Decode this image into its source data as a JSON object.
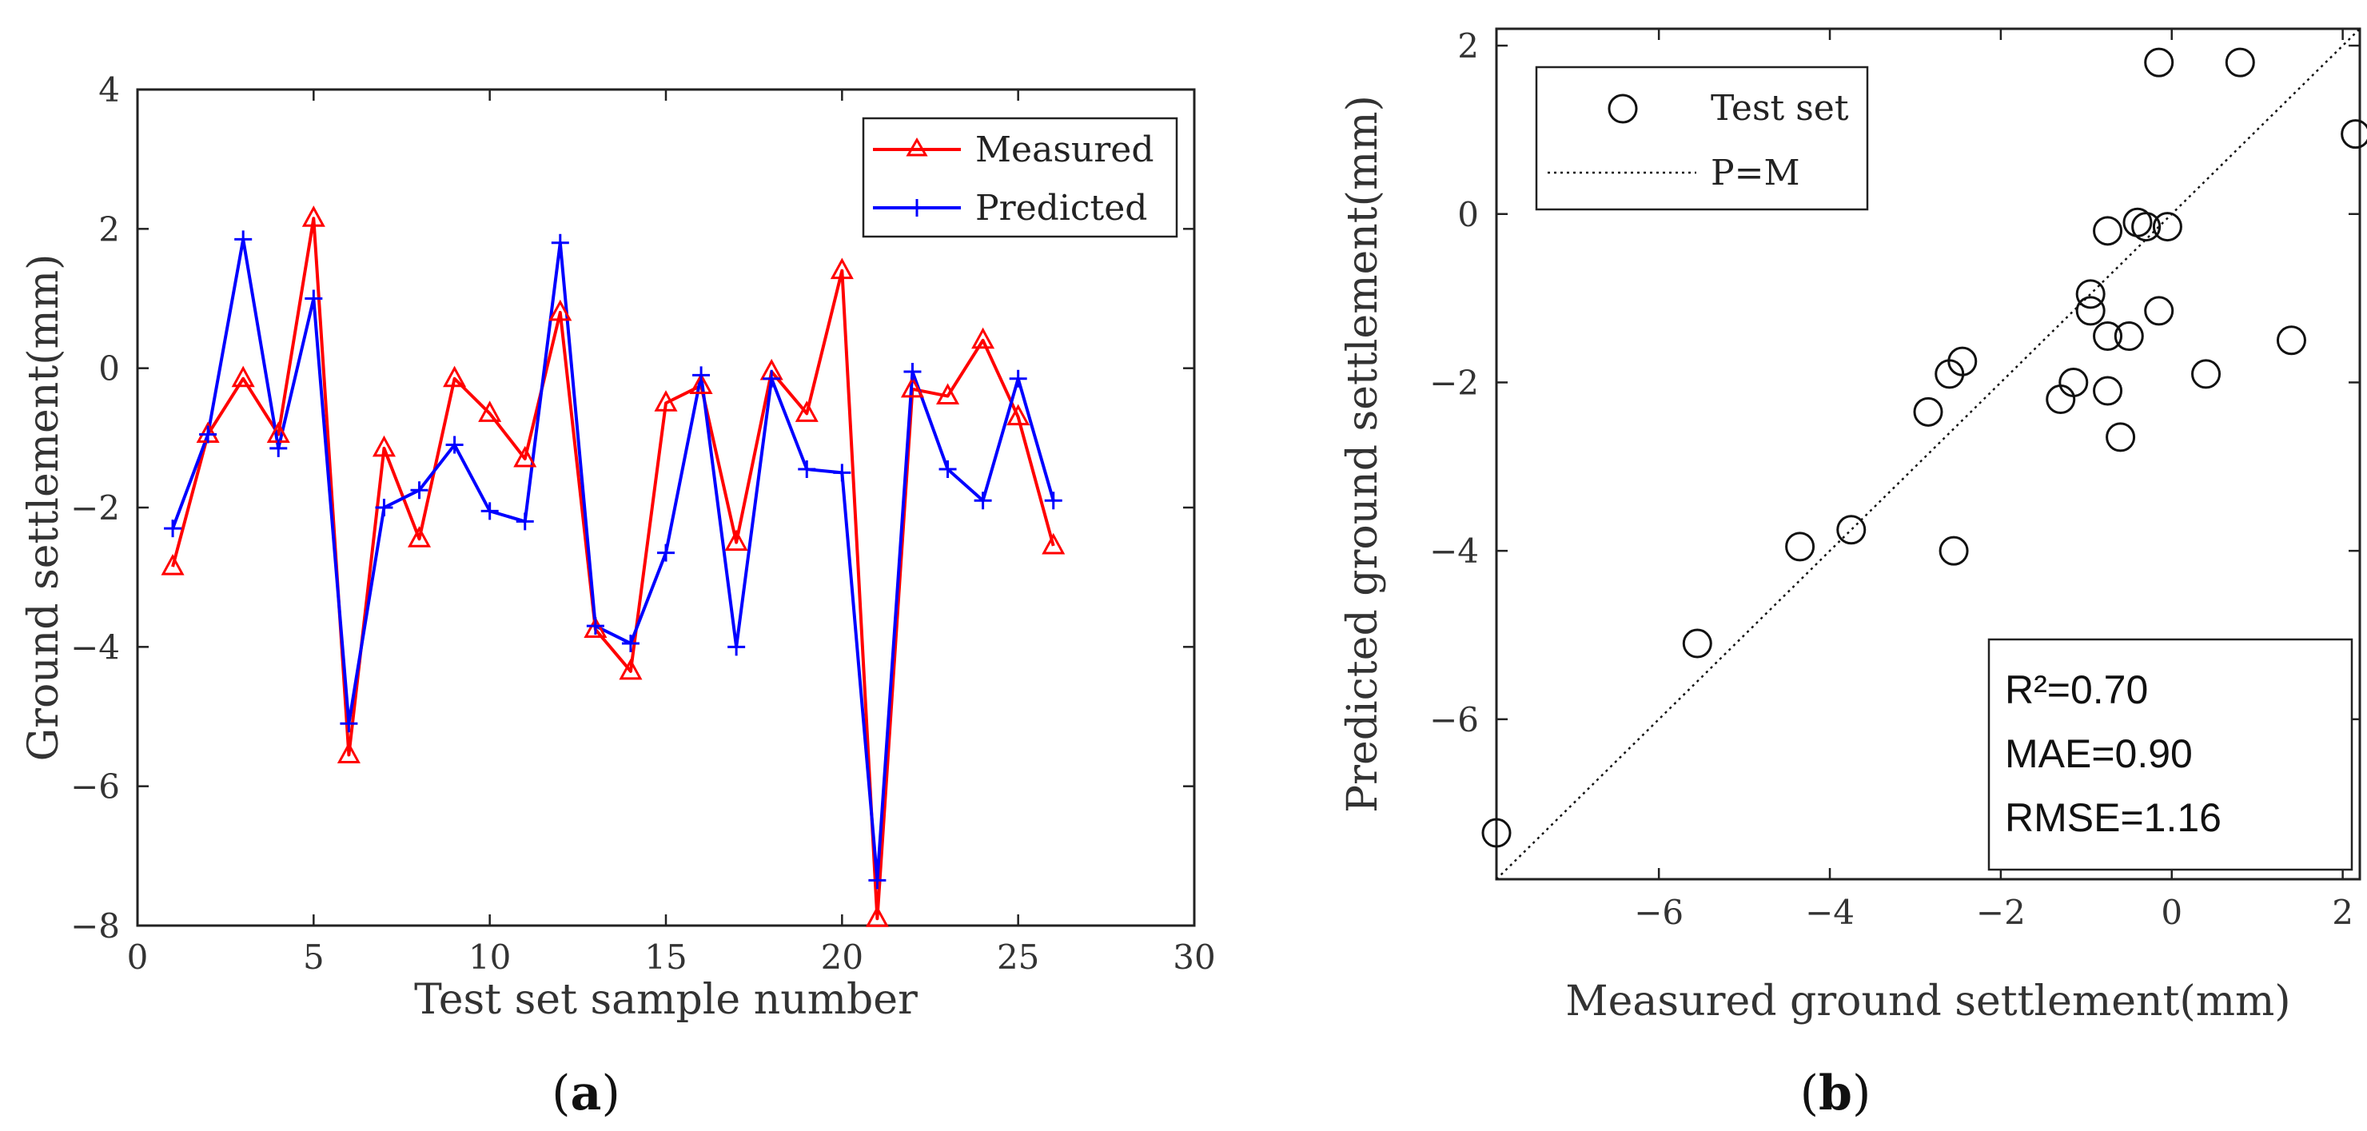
{
  "chart_data": [
    {
      "type": "line",
      "panel_label": "a",
      "xlabel": "Test set sample number",
      "ylabel": "Ground settlement(mm)",
      "xlim": [
        0,
        30
      ],
      "ylim": [
        -8,
        4
      ],
      "xticks": [
        0,
        5,
        10,
        15,
        20,
        25,
        30
      ],
      "yticks": [
        -8,
        -6,
        -4,
        -2,
        0,
        2,
        4
      ],
      "x": [
        1,
        2,
        3,
        4,
        5,
        6,
        7,
        8,
        9,
        10,
        11,
        12,
        13,
        14,
        15,
        16,
        17,
        18,
        19,
        20,
        21,
        22,
        23,
        24,
        25,
        26
      ],
      "series": [
        {
          "name": "Measured",
          "color": "#ff0000",
          "marker": "triangle",
          "values": [
            -2.85,
            -0.95,
            -0.15,
            -0.95,
            2.15,
            -5.55,
            -1.15,
            -2.45,
            -0.15,
            -0.65,
            -1.3,
            0.8,
            -3.75,
            -4.35,
            -0.5,
            -0.25,
            -2.5,
            -0.05,
            -0.65,
            1.4,
            -7.9,
            -0.3,
            -0.4,
            0.4,
            -0.7,
            -2.55
          ]
        },
        {
          "name": "Predicted",
          "color": "#0000ff",
          "marker": "plus",
          "values": [
            -2.3,
            -0.95,
            1.85,
            -1.15,
            1.0,
            -5.1,
            -2.0,
            -1.75,
            -1.1,
            -2.05,
            -2.2,
            1.8,
            -3.7,
            -3.95,
            -2.65,
            -0.1,
            -4.0,
            -0.15,
            -1.45,
            -1.5,
            -7.35,
            -0.05,
            -1.45,
            -1.9,
            -0.15,
            -1.9
          ]
        }
      ],
      "legend_position": "top-right"
    },
    {
      "type": "scatter",
      "panel_label": "b",
      "xlabel": "Measured ground settlement(mm)",
      "ylabel": "Predicted ground settlement(mm)",
      "xlim": [
        -7.9,
        2.2
      ],
      "ylim": [
        -7.9,
        2.2
      ],
      "xticks": [
        -6,
        -4,
        -2,
        0,
        2
      ],
      "yticks": [
        -6,
        -4,
        -2,
        0,
        2
      ],
      "series": [
        {
          "name": "Test set",
          "marker": "circle",
          "points": [
            [
              -7.9,
              -7.35
            ],
            [
              -5.55,
              -5.1
            ],
            [
              -4.35,
              -3.95
            ],
            [
              -3.75,
              -3.75
            ],
            [
              -2.85,
              -2.35
            ],
            [
              -2.6,
              -1.9
            ],
            [
              -2.45,
              -1.75
            ],
            [
              -2.55,
              -4.0
            ],
            [
              -1.3,
              -2.2
            ],
            [
              -1.15,
              -2.0
            ],
            [
              -0.95,
              -1.15
            ],
            [
              -0.95,
              -0.95
            ],
            [
              -0.75,
              -1.45
            ],
            [
              -0.75,
              -2.1
            ],
            [
              -0.75,
              -0.2
            ],
            [
              -0.5,
              -1.45
            ],
            [
              -0.6,
              -2.65
            ],
            [
              -0.4,
              -0.1
            ],
            [
              -0.3,
              -0.15
            ],
            [
              -0.15,
              -1.15
            ],
            [
              -0.05,
              -0.15
            ],
            [
              -0.15,
              1.8
            ],
            [
              0.4,
              -1.9
            ],
            [
              0.8,
              1.8
            ],
            [
              1.4,
              -1.5
            ],
            [
              2.15,
              0.95
            ]
          ]
        },
        {
          "name": "P=M",
          "style": "dotted",
          "line": [
            [
              -7.9,
              -7.9
            ],
            [
              2.2,
              2.2
            ]
          ]
        }
      ],
      "legend_position": "top-left",
      "annotations": [
        "R²=0.70",
        "MAE=0.90",
        "RMSE=1.16"
      ]
    }
  ]
}
